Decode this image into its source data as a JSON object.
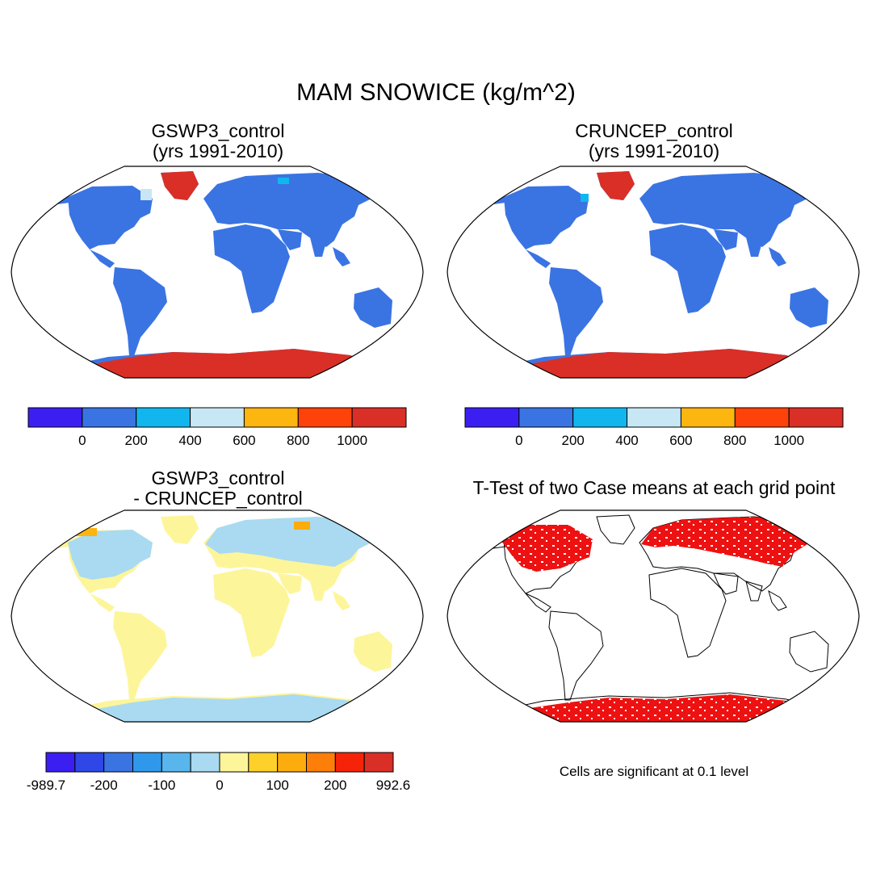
{
  "figure": {
    "title": "MAM SNOWICE (kg/m^2)"
  },
  "panels": [
    {
      "title_line1": "GSWP3_control",
      "title_line2": "(yrs 1991-2010)",
      "colorbar": {
        "colors": [
          "#3b1ff2",
          "#3a74e3",
          "#12b6ee",
          "#c7e7f5",
          "#fdb50f",
          "#fd420a",
          "#d92f27"
        ],
        "labels": [
          "0",
          "200",
          "400",
          "600",
          "800",
          "1000"
        ]
      }
    },
    {
      "title_line1": "CRUNCEP_control",
      "title_line2": "(yrs 1991-2010)",
      "colorbar": {
        "colors": [
          "#3b1ff2",
          "#3a74e3",
          "#12b6ee",
          "#c7e7f5",
          "#fdb50f",
          "#fd420a",
          "#d92f27"
        ],
        "labels": [
          "0",
          "200",
          "400",
          "600",
          "800",
          "1000"
        ]
      }
    },
    {
      "title_line1": "GSWP3_control",
      "title_line2": "- CRUNCEP_control",
      "colorbar": {
        "colors": [
          "#3b1ff2",
          "#2e47e6",
          "#3a74e3",
          "#2f98ea",
          "#58b6ec",
          "#a9daf1",
          "#fdf59a",
          "#fdd12a",
          "#fdac0d",
          "#fd7e09",
          "#f52408",
          "#d92f27"
        ],
        "labels": [
          "-989.7",
          "-200",
          "-100",
          "0",
          "100",
          "200",
          "992.6"
        ]
      }
    },
    {
      "title_line1": "T-Test of two Case means at each grid point",
      "note": "Cells are significant at 0.1 level",
      "significant_color": "#ee1111"
    }
  ],
  "colors": {
    "land_base": "#3a74e3",
    "greenland_antarctica": "#d92f27",
    "diff_land": "#fdf59a",
    "diff_cold": "#a9daf1",
    "significant": "#ee1111"
  }
}
